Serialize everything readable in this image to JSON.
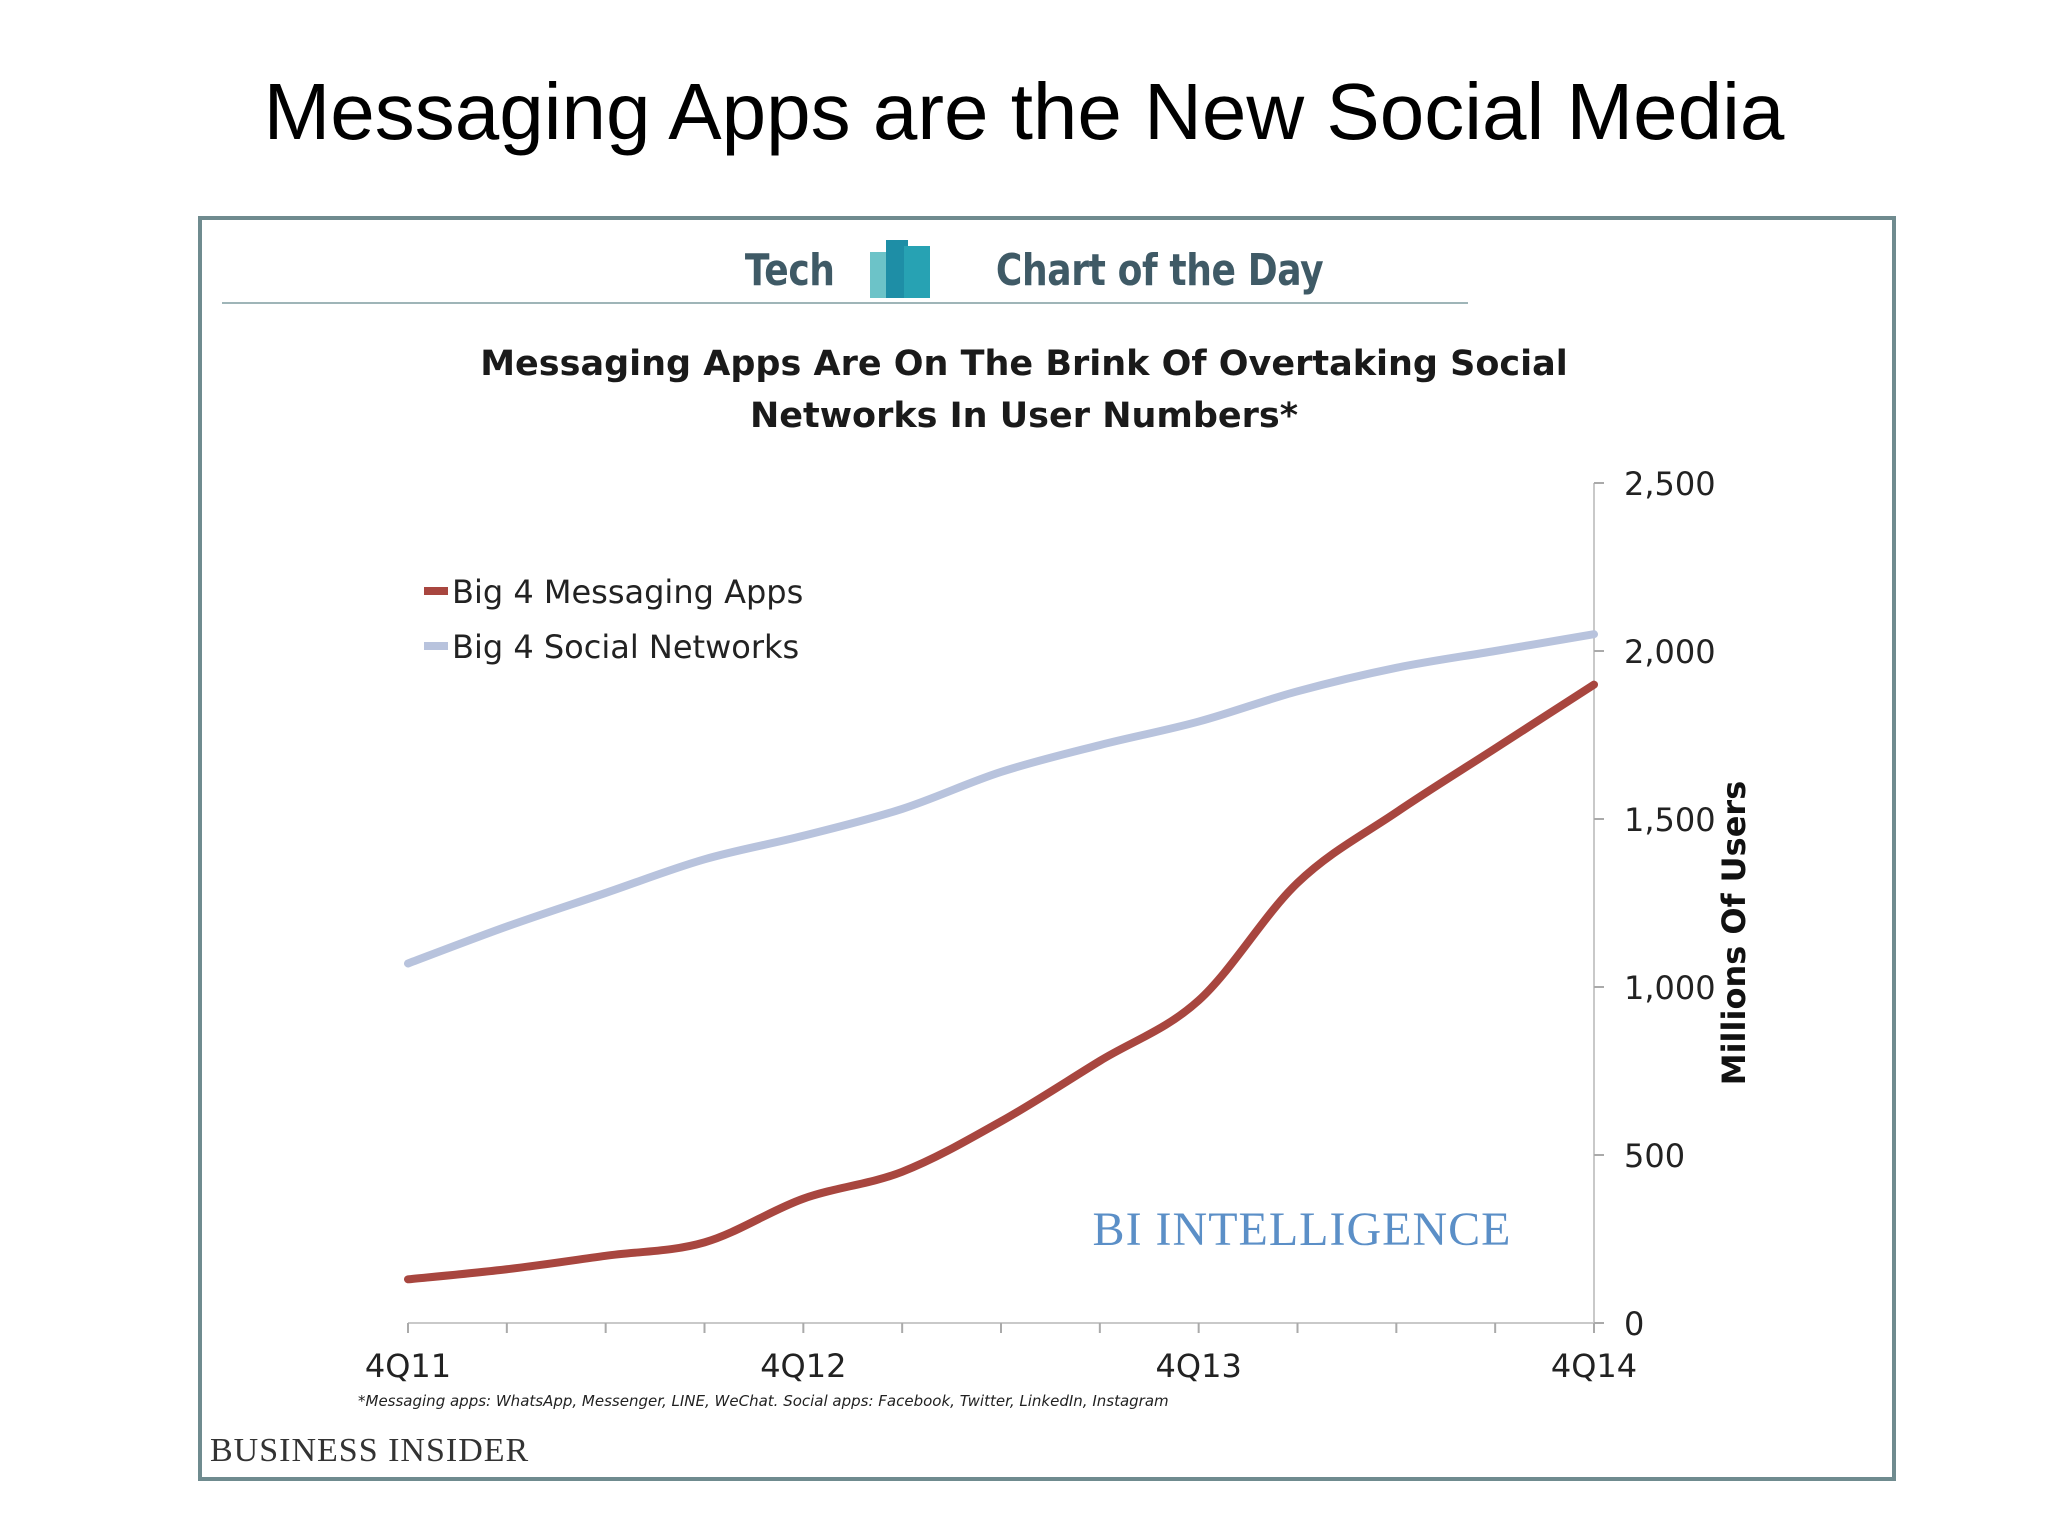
{
  "slide": {
    "title": "Messaging Apps are the New Social Media"
  },
  "header": {
    "left_word": "Tech",
    "right_word": "Chart of the Day"
  },
  "footnote": "*Messaging apps: WhatsApp, Messenger, LINE, WeChat. Social apps: Facebook, Twitter, LinkedIn, Instagram",
  "source": "BUSINESS INSIDER",
  "watermark": "BI INTELLIGENCE",
  "colors": {
    "messaging": "#a8463f",
    "social": "#b8c3dd",
    "frame": "#6f8b8f",
    "watermark": "#5b8fc7"
  },
  "chart_data": {
    "type": "line",
    "title_lines": [
      "Messaging Apps Are On The Brink Of Overtaking Social",
      "Networks In User Numbers*"
    ],
    "xlabel": "",
    "ylabel": "Millions Of Users",
    "x_ticks": [
      "4Q11",
      "4Q12",
      "4Q13",
      "4Q14"
    ],
    "y_ticks": [
      "0",
      "500",
      "1,000",
      "1,500",
      "2,000",
      "2,500"
    ],
    "ylim": [
      0,
      2500
    ],
    "y_axis_side": "right",
    "legend_position": "top-left",
    "grid": false,
    "x": [
      "4Q11",
      "1Q12",
      "2Q12",
      "3Q12",
      "4Q12",
      "1Q13",
      "2Q13",
      "3Q13",
      "4Q13",
      "1Q14",
      "2Q14",
      "3Q14",
      "4Q14"
    ],
    "series": [
      {
        "name": "Big 4 Messaging Apps",
        "color": "#a8463f",
        "values": [
          130,
          160,
          200,
          240,
          370,
          450,
          600,
          780,
          960,
          1310,
          1520,
          1710,
          1900
        ]
      },
      {
        "name": "Big 4 Social Networks",
        "color": "#b8c3dd",
        "values": [
          1070,
          1180,
          1280,
          1380,
          1450,
          1530,
          1640,
          1720,
          1790,
          1880,
          1950,
          2000,
          2050
        ]
      }
    ]
  }
}
